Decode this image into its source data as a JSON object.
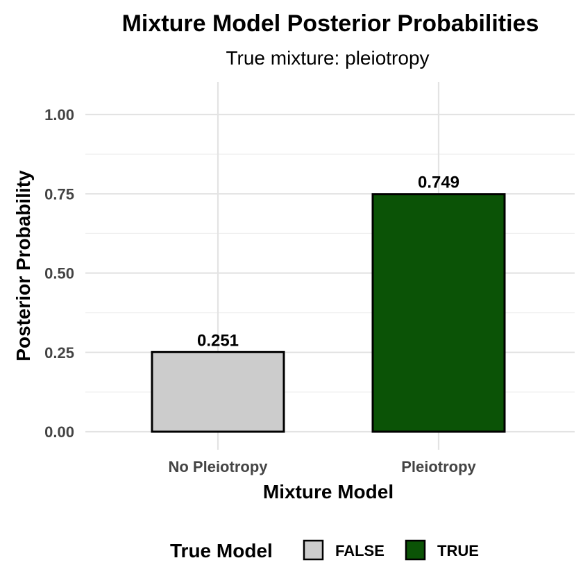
{
  "chart_data": {
    "type": "bar",
    "title": "Mixture Model Posterior Probabilities",
    "subtitle": "True mixture: pleiotropy",
    "xlabel": "Mixture Model",
    "ylabel": "Posterior Probability",
    "categories": [
      "No Pleiotropy",
      "Pleiotropy"
    ],
    "values": [
      0.251,
      0.749
    ],
    "data_labels": [
      "0.251",
      "0.749"
    ],
    "fill_group": [
      "FALSE",
      "TRUE"
    ],
    "ylim": [
      0,
      1.1
    ],
    "yticks": [
      0,
      0.25,
      0.5,
      0.75,
      1.0
    ],
    "ytick_labels": [
      "0.00",
      "0.25",
      "0.50",
      "0.75",
      "1.00"
    ],
    "grid": true,
    "legend": {
      "title": "True Model",
      "position": "bottom",
      "entries": [
        {
          "label": "FALSE",
          "color": "#cccccc"
        },
        {
          "label": "TRUE",
          "color": "#0b5306"
        }
      ]
    },
    "colors": {
      "FALSE": "#cccccc",
      "TRUE": "#0b5306",
      "bar_border": "#000000"
    }
  }
}
